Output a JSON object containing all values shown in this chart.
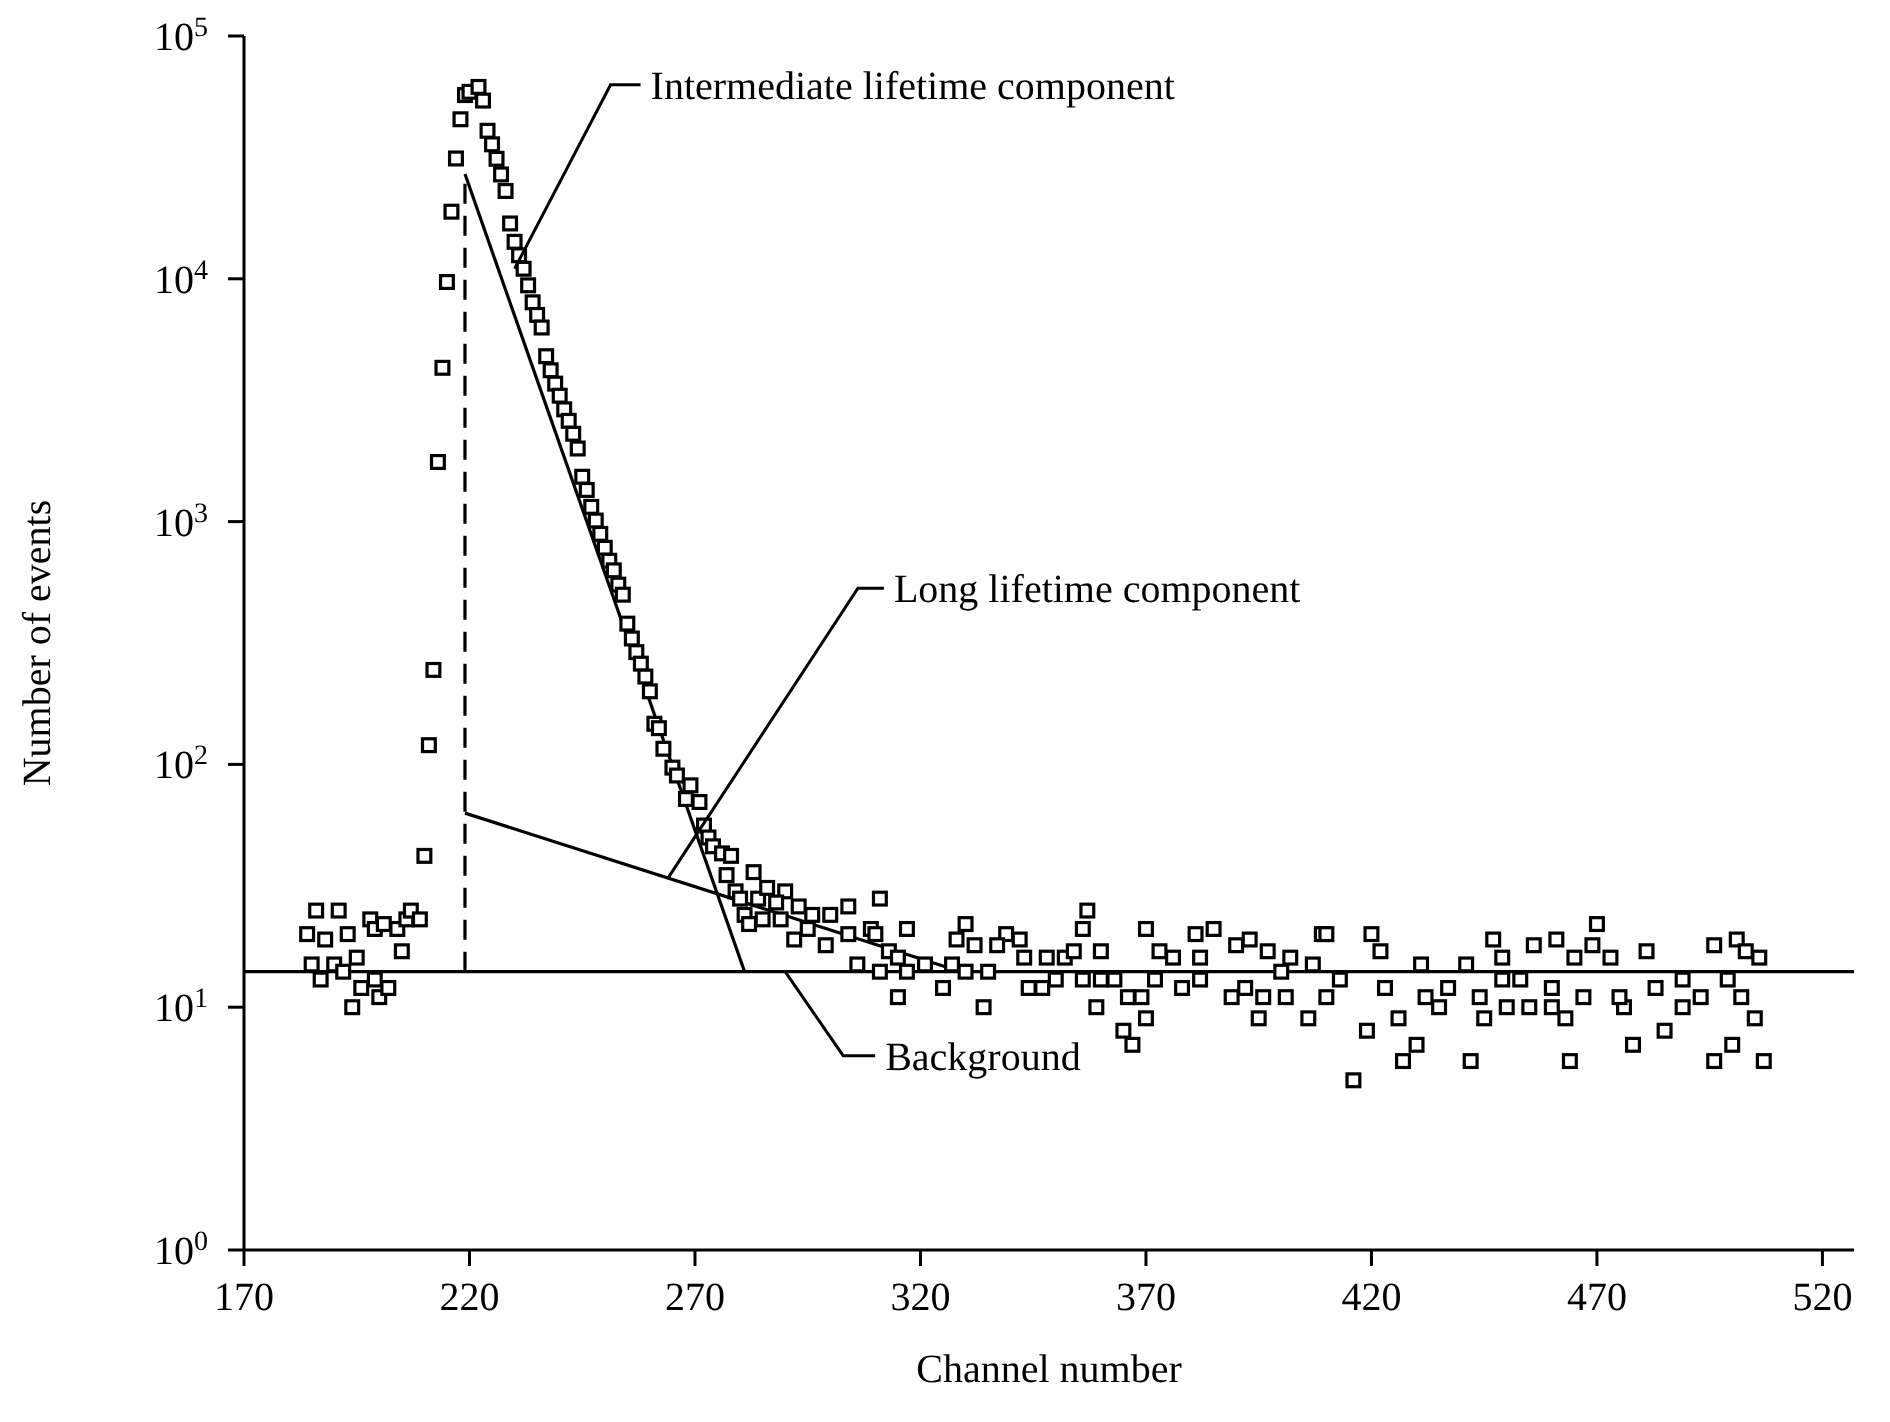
{
  "chart_data": {
    "type": "scatter",
    "xlabel": "Channel number",
    "ylabel": "Number of events",
    "log": "y",
    "xlim": [
      170,
      527
    ],
    "xticks": [
      170,
      220,
      270,
      320,
      370,
      420,
      470,
      520
    ],
    "ylim": [
      1,
      100000
    ],
    "yticks": [
      {
        "value": 1,
        "label": "10$^{0}$"
      },
      {
        "value": 10,
        "label": "10$^{1}$"
      },
      {
        "value": 100,
        "label": "10$^{2}$"
      },
      {
        "value": 1000,
        "label": "10$^{3}$"
      },
      {
        "value": 10000,
        "label": "10$^{4}$"
      },
      {
        "value": 100000,
        "label": "10$^{5}$"
      }
    ],
    "series": [
      {
        "marker": "square",
        "color": "#000000",
        "x": [
          186,
          191,
          184,
          188,
          193,
          185,
          190,
          187,
          192,
          195,
          194,
          196,
          199,
          200,
          202,
          198,
          199,
          201,
          204,
          205,
          206,
          207,
          209,
          210,
          211,
          212,
          213,
          214,
          215,
          216,
          217,
          218,
          219,
          220,
          222,
          223,
          224,
          225,
          226,
          227,
          228,
          229,
          230,
          231,
          232,
          233,
          234,
          235,
          236,
          237,
          238,
          239,
          240,
          241,
          242,
          243,
          244,
          245,
          246,
          247,
          248,
          249,
          250,
          251,
          252,
          253,
          254,
          255,
          256,
          257,
          258,
          259,
          260,
          261,
          262,
          263,
          265,
          266,
          268,
          269,
          271,
          272,
          273,
          274,
          276,
          277,
          278,
          279,
          280,
          281,
          282,
          283,
          284,
          286,
          290,
          288,
          293,
          285,
          289,
          296,
          300,
          304,
          311,
          317,
          309,
          292,
          295,
          299,
          304,
          310,
          306,
          313,
          311,
          315,
          315,
          317,
          321,
          325,
          327,
          330,
          328,
          332,
          330,
          334,
          335,
          339,
          342,
          337,
          343,
          344,
          348,
          347,
          350,
          352,
          354,
          356,
          357,
          360,
          356,
          359,
          360,
          363,
          366,
          369,
          365,
          367,
          370,
          370,
          373,
          376,
          372,
          378,
          381,
          382,
          385,
          382,
          389,
          390,
          393,
          392,
          395,
          397,
          396,
          401,
          400,
          402,
          406,
          407,
          409,
          410,
          420,
          422,
          419,
          416,
          426,
          427,
          430,
          431,
          432,
          435,
          441,
          442,
          445,
          447,
          449,
          450,
          455,
          456,
          460,
          463,
          461,
          465,
          460,
          464,
          469,
          470,
          473,
          476,
          478,
          481,
          485,
          489,
          493,
          496,
          496,
          500,
          501,
          503,
          505,
          506,
          507,
          502,
          410,
          423,
          437,
          444,
          467,
          475,
          483,
          489,
          499,
          453,
          413,
          449
        ],
        "values": [
          25,
          25,
          20,
          19,
          20,
          15,
          15,
          13,
          14,
          16,
          10,
          12,
          13,
          11,
          12,
          23,
          21,
          22,
          21,
          17,
          23,
          25,
          23,
          42,
          120,
          245,
          1760,
          4300,
          9700,
          18900,
          31300,
          45400,
          57100,
          58900,
          61700,
          54200,
          40700,
          35800,
          31200,
          26900,
          23000,
          16900,
          14200,
          12500,
          11000,
          9400,
          8000,
          7100,
          6300,
          4800,
          4200,
          3700,
          3300,
          2900,
          2600,
          2300,
          2000,
          1530,
          1350,
          1150,
          1010,
          890,
          780,
          690,
          630,
          550,
          500,
          380,
          330,
          290,
          260,
          230,
          200,
          147,
          141,
          116,
          97,
          90,
          72,
          82,
          70,
          56,
          50,
          46,
          43,
          35,
          42,
          30,
          28,
          24,
          22,
          36,
          28,
          31,
          30,
          27,
          26,
          23,
          23,
          24,
          24,
          26,
          28,
          21,
          21,
          19,
          21,
          18,
          20,
          20,
          15,
          17,
          14,
          16,
          11,
          14,
          15,
          12,
          15,
          22,
          19,
          18,
          14,
          10,
          14,
          20,
          19,
          18,
          16,
          12,
          16,
          12,
          13,
          16,
          17,
          21,
          25,
          17,
          13,
          10,
          13,
          13,
          11,
          11,
          8,
          7,
          9,
          21,
          17,
          16,
          13,
          12,
          20,
          16,
          21,
          13,
          11,
          18,
          19,
          12,
          9,
          17,
          11,
          11,
          14,
          16,
          9,
          15,
          20,
          20,
          20,
          17,
          8,
          5,
          9,
          6,
          7,
          15,
          11,
          10,
          15,
          6,
          9,
          19,
          16,
          10,
          10,
          18,
          10,
          9,
          19,
          16,
          12,
          6,
          18,
          22,
          16,
          10,
          7,
          17,
          8,
          10,
          11,
          18,
          6,
          7,
          19,
          17,
          9,
          16,
          6,
          11,
          11,
          12,
          12,
          11,
          11,
          11,
          12,
          13,
          13,
          13,
          13,
          13
        ]
      },
      {
        "type": "line",
        "color": "#000000",
        "x": [
          219,
          281
        ],
        "values": [
          27000,
          14
        ]
      },
      {
        "type": "line",
        "color": "#000000",
        "x": [
          219,
          329
        ],
        "values": [
          63,
          14
        ]
      },
      {
        "type": "line",
        "color": "#000000",
        "x": [
          170,
          527
        ],
        "values": [
          14,
          14
        ]
      },
      {
        "type": "line",
        "color": "#000000",
        "line_style": "dashed",
        "x": [
          219,
          219
        ],
        "values": [
          14,
          27000
        ]
      }
    ],
    "annotations": [
      {
        "text": "Intermediate lifetime component",
        "x": 230,
        "y": 11000
      },
      {
        "text": "Long lifetime component",
        "x": 264,
        "y": 34
      },
      {
        "text": "Background",
        "x": 290,
        "y": 14
      }
    ]
  }
}
